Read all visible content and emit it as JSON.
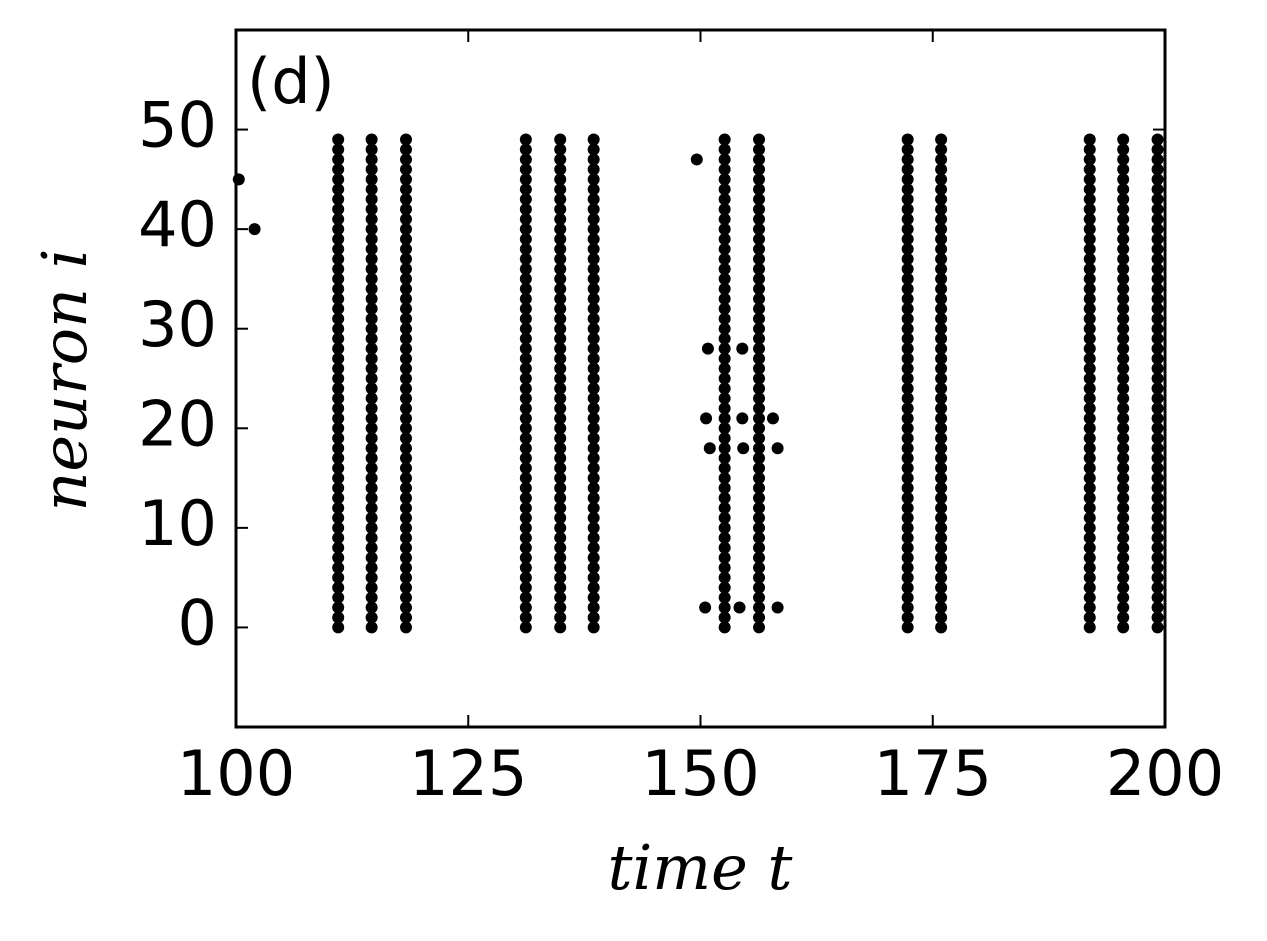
{
  "chart_data": {
    "type": "scatter",
    "annotation": "(d)",
    "xlabel": "time t",
    "ylabel": "neuron i",
    "color": "#000000",
    "xlim": [
      100,
      200
    ],
    "ylim": [
      -10,
      60
    ],
    "xticks": [
      100,
      125,
      150,
      175,
      200
    ],
    "yticks": [
      0,
      10,
      20,
      30,
      40,
      50
    ],
    "x": [
      111.0,
      111.0,
      111.0,
      111.0,
      111.0,
      111.0,
      111.0,
      111.0,
      111.0,
      111.0,
      111.0,
      111.0,
      111.0,
      111.0,
      111.0,
      111.0,
      111.0,
      111.0,
      111.0,
      111.0,
      111.0,
      111.0,
      111.0,
      111.0,
      111.0,
      111.0,
      111.0,
      111.0,
      111.0,
      111.0,
      111.0,
      111.0,
      111.0,
      111.0,
      111.0,
      111.0,
      111.0,
      111.0,
      111.0,
      111.0,
      111.0,
      111.0,
      111.0,
      111.0,
      111.0,
      111.0,
      111.0,
      111.0,
      111.0,
      111.0,
      114.6,
      114.6,
      114.6,
      114.6,
      114.6,
      114.6,
      114.6,
      114.6,
      114.6,
      114.6,
      114.6,
      114.6,
      114.6,
      114.6,
      114.6,
      114.6,
      114.6,
      114.6,
      114.6,
      114.6,
      114.6,
      114.6,
      114.6,
      114.6,
      114.6,
      114.6,
      114.6,
      114.6,
      114.6,
      114.6,
      114.6,
      114.6,
      114.6,
      114.6,
      114.6,
      114.6,
      114.6,
      114.6,
      114.6,
      114.6,
      114.6,
      114.6,
      114.6,
      114.6,
      114.6,
      114.6,
      114.6,
      114.6,
      114.6,
      114.6,
      118.3,
      118.3,
      118.3,
      118.3,
      118.3,
      118.3,
      118.3,
      118.3,
      118.3,
      118.3,
      118.3,
      118.3,
      118.3,
      118.3,
      118.3,
      118.3,
      118.3,
      118.3,
      118.3,
      118.3,
      118.3,
      118.3,
      118.3,
      118.3,
      118.3,
      118.3,
      118.3,
      118.3,
      118.3,
      118.3,
      118.3,
      118.3,
      118.3,
      118.3,
      118.3,
      118.3,
      118.3,
      118.3,
      118.3,
      118.3,
      118.3,
      118.3,
      118.3,
      118.3,
      118.3,
      118.3,
      118.3,
      118.3,
      118.3,
      118.3,
      131.2,
      131.2,
      131.2,
      131.2,
      131.2,
      131.2,
      131.2,
      131.2,
      131.2,
      131.2,
      131.2,
      131.2,
      131.2,
      131.2,
      131.2,
      131.2,
      131.2,
      131.2,
      131.2,
      131.2,
      131.2,
      131.2,
      131.2,
      131.2,
      131.2,
      131.2,
      131.2,
      131.2,
      131.2,
      131.2,
      131.2,
      131.2,
      131.2,
      131.2,
      131.2,
      131.2,
      131.2,
      131.2,
      131.2,
      131.2,
      131.2,
      131.2,
      131.2,
      131.2,
      131.2,
      131.2,
      131.2,
      131.2,
      131.2,
      131.2,
      134.9,
      134.9,
      134.9,
      134.9,
      134.9,
      134.9,
      134.9,
      134.9,
      134.9,
      134.9,
      134.9,
      134.9,
      134.9,
      134.9,
      134.9,
      134.9,
      134.9,
      134.9,
      134.9,
      134.9,
      134.9,
      134.9,
      134.9,
      134.9,
      134.9,
      134.9,
      134.9,
      134.9,
      134.9,
      134.9,
      134.9,
      134.9,
      134.9,
      134.9,
      134.9,
      134.9,
      134.9,
      134.9,
      134.9,
      134.9,
      134.9,
      134.9,
      134.9,
      134.9,
      134.9,
      134.9,
      134.9,
      134.9,
      134.9,
      134.9,
      138.5,
      138.5,
      138.5,
      138.5,
      138.5,
      138.5,
      138.5,
      138.5,
      138.5,
      138.5,
      138.5,
      138.5,
      138.5,
      138.5,
      138.5,
      138.5,
      138.5,
      138.5,
      138.5,
      138.5,
      138.5,
      138.5,
      138.5,
      138.5,
      138.5,
      138.5,
      138.5,
      138.5,
      138.5,
      138.5,
      138.5,
      138.5,
      138.5,
      138.5,
      138.5,
      138.5,
      138.5,
      138.5,
      138.5,
      138.5,
      138.5,
      138.5,
      138.5,
      138.5,
      138.5,
      138.5,
      138.5,
      138.5,
      138.5,
      138.5,
      152.6,
      152.6,
      152.6,
      152.6,
      152.6,
      152.6,
      152.6,
      152.6,
      152.6,
      152.6,
      152.6,
      152.6,
      152.6,
      152.6,
      152.6,
      152.6,
      152.6,
      152.6,
      152.6,
      152.6,
      152.6,
      152.6,
      152.6,
      152.6,
      152.6,
      152.6,
      152.6,
      152.6,
      152.6,
      152.6,
      152.6,
      152.6,
      152.6,
      152.6,
      152.6,
      152.6,
      152.6,
      152.6,
      152.6,
      152.6,
      152.6,
      152.6,
      152.6,
      152.6,
      152.6,
      152.6,
      152.6,
      152.6,
      152.6,
      152.6,
      156.3,
      156.3,
      156.3,
      156.3,
      156.3,
      156.3,
      156.3,
      156.3,
      156.3,
      156.3,
      156.3,
      156.3,
      156.3,
      156.3,
      156.3,
      156.3,
      156.3,
      156.3,
      156.3,
      156.3,
      156.3,
      156.3,
      156.3,
      156.3,
      156.3,
      156.3,
      156.3,
      156.3,
      156.3,
      156.3,
      156.3,
      156.3,
      156.3,
      156.3,
      156.3,
      156.3,
      156.3,
      156.3,
      156.3,
      156.3,
      156.3,
      156.3,
      156.3,
      156.3,
      156.3,
      156.3,
      156.3,
      156.3,
      156.3,
      156.3,
      172.3,
      172.3,
      172.3,
      172.3,
      172.3,
      172.3,
      172.3,
      172.3,
      172.3,
      172.3,
      172.3,
      172.3,
      172.3,
      172.3,
      172.3,
      172.3,
      172.3,
      172.3,
      172.3,
      172.3,
      172.3,
      172.3,
      172.3,
      172.3,
      172.3,
      172.3,
      172.3,
      172.3,
      172.3,
      172.3,
      172.3,
      172.3,
      172.3,
      172.3,
      172.3,
      172.3,
      172.3,
      172.3,
      172.3,
      172.3,
      172.3,
      172.3,
      172.3,
      172.3,
      172.3,
      172.3,
      172.3,
      172.3,
      172.3,
      172.3,
      175.9,
      175.9,
      175.9,
      175.9,
      175.9,
      175.9,
      175.9,
      175.9,
      175.9,
      175.9,
      175.9,
      175.9,
      175.9,
      175.9,
      175.9,
      175.9,
      175.9,
      175.9,
      175.9,
      175.9,
      175.9,
      175.9,
      175.9,
      175.9,
      175.9,
      175.9,
      175.9,
      175.9,
      175.9,
      175.9,
      175.9,
      175.9,
      175.9,
      175.9,
      175.9,
      175.9,
      175.9,
      175.9,
      175.9,
      175.9,
      175.9,
      175.9,
      175.9,
      175.9,
      175.9,
      175.9,
      175.9,
      175.9,
      175.9,
      175.9,
      191.9,
      191.9,
      191.9,
      191.9,
      191.9,
      191.9,
      191.9,
      191.9,
      191.9,
      191.9,
      191.9,
      191.9,
      191.9,
      191.9,
      191.9,
      191.9,
      191.9,
      191.9,
      191.9,
      191.9,
      191.9,
      191.9,
      191.9,
      191.9,
      191.9,
      191.9,
      191.9,
      191.9,
      191.9,
      191.9,
      191.9,
      191.9,
      191.9,
      191.9,
      191.9,
      191.9,
      191.9,
      191.9,
      191.9,
      191.9,
      191.9,
      191.9,
      191.9,
      191.9,
      191.9,
      191.9,
      191.9,
      191.9,
      191.9,
      191.9,
      195.5,
      195.5,
      195.5,
      195.5,
      195.5,
      195.5,
      195.5,
      195.5,
      195.5,
      195.5,
      195.5,
      195.5,
      195.5,
      195.5,
      195.5,
      195.5,
      195.5,
      195.5,
      195.5,
      195.5,
      195.5,
      195.5,
      195.5,
      195.5,
      195.5,
      195.5,
      195.5,
      195.5,
      195.5,
      195.5,
      195.5,
      195.5,
      195.5,
      195.5,
      195.5,
      195.5,
      195.5,
      195.5,
      195.5,
      195.5,
      195.5,
      195.5,
      195.5,
      195.5,
      195.5,
      195.5,
      195.5,
      195.5,
      195.5,
      195.5,
      199.2,
      199.2,
      199.2,
      199.2,
      199.2,
      199.2,
      199.2,
      199.2,
      199.2,
      199.2,
      199.2,
      199.2,
      199.2,
      199.2,
      199.2,
      199.2,
      199.2,
      199.2,
      199.2,
      199.2,
      199.2,
      199.2,
      199.2,
      199.2,
      199.2,
      199.2,
      199.2,
      199.2,
      199.2,
      199.2,
      199.2,
      199.2,
      199.2,
      199.2,
      199.2,
      199.2,
      199.2,
      199.2,
      199.2,
      199.2,
      199.2,
      199.2,
      199.2,
      199.2,
      199.2,
      199.2,
      199.2,
      199.2,
      199.2,
      199.2,
      100.3,
      102.0,
      149.6,
      150.5,
      150.6,
      151.0,
      150.8,
      154.5,
      154.5,
      154.6,
      154.2,
      157.8,
      158.3,
      158.3
    ],
    "y": [
      0,
      1,
      2,
      3,
      4,
      5,
      6,
      7,
      8,
      9,
      10,
      11,
      12,
      13,
      14,
      15,
      16,
      17,
      18,
      19,
      20,
      21,
      22,
      23,
      24,
      25,
      26,
      27,
      28,
      29,
      30,
      31,
      32,
      33,
      34,
      35,
      36,
      37,
      38,
      39,
      40,
      41,
      42,
      43,
      44,
      45,
      46,
      47,
      48,
      49,
      0,
      1,
      2,
      3,
      4,
      5,
      6,
      7,
      8,
      9,
      10,
      11,
      12,
      13,
      14,
      15,
      16,
      17,
      18,
      19,
      20,
      21,
      22,
      23,
      24,
      25,
      26,
      27,
      28,
      29,
      30,
      31,
      32,
      33,
      34,
      35,
      36,
      37,
      38,
      39,
      40,
      41,
      42,
      43,
      44,
      45,
      46,
      47,
      48,
      49,
      0,
      1,
      2,
      3,
      4,
      5,
      6,
      7,
      8,
      9,
      10,
      11,
      12,
      13,
      14,
      15,
      16,
      17,
      18,
      19,
      20,
      21,
      22,
      23,
      24,
      25,
      26,
      27,
      28,
      29,
      30,
      31,
      32,
      33,
      34,
      35,
      36,
      37,
      38,
      39,
      40,
      41,
      42,
      43,
      44,
      45,
      46,
      47,
      48,
      49,
      0,
      1,
      2,
      3,
      4,
      5,
      6,
      7,
      8,
      9,
      10,
      11,
      12,
      13,
      14,
      15,
      16,
      17,
      18,
      19,
      20,
      21,
      22,
      23,
      24,
      25,
      26,
      27,
      28,
      29,
      30,
      31,
      32,
      33,
      34,
      35,
      36,
      37,
      38,
      39,
      40,
      41,
      42,
      43,
      44,
      45,
      46,
      47,
      48,
      49,
      0,
      1,
      2,
      3,
      4,
      5,
      6,
      7,
      8,
      9,
      10,
      11,
      12,
      13,
      14,
      15,
      16,
      17,
      18,
      19,
      20,
      21,
      22,
      23,
      24,
      25,
      26,
      27,
      28,
      29,
      30,
      31,
      32,
      33,
      34,
      35,
      36,
      37,
      38,
      39,
      40,
      41,
      42,
      43,
      44,
      45,
      46,
      47,
      48,
      49,
      0,
      1,
      2,
      3,
      4,
      5,
      6,
      7,
      8,
      9,
      10,
      11,
      12,
      13,
      14,
      15,
      16,
      17,
      18,
      19,
      20,
      21,
      22,
      23,
      24,
      25,
      26,
      27,
      28,
      29,
      30,
      31,
      32,
      33,
      34,
      35,
      36,
      37,
      38,
      39,
      40,
      41,
      42,
      43,
      44,
      45,
      46,
      47,
      48,
      49,
      0,
      1,
      2,
      3,
      4,
      5,
      6,
      7,
      8,
      9,
      10,
      11,
      12,
      13,
      14,
      15,
      16,
      17,
      18,
      19,
      20,
      21,
      22,
      23,
      24,
      25,
      26,
      27,
      28,
      29,
      30,
      31,
      32,
      33,
      34,
      35,
      36,
      37,
      38,
      39,
      40,
      41,
      42,
      43,
      44,
      45,
      46,
      47,
      48,
      49,
      0,
      1,
      2,
      3,
      4,
      5,
      6,
      7,
      8,
      9,
      10,
      11,
      12,
      13,
      14,
      15,
      16,
      17,
      18,
      19,
      20,
      21,
      22,
      23,
      24,
      25,
      26,
      27,
      28,
      29,
      30,
      31,
      32,
      33,
      34,
      35,
      36,
      37,
      38,
      39,
      40,
      41,
      42,
      43,
      44,
      45,
      46,
      47,
      48,
      49,
      0,
      1,
      2,
      3,
      4,
      5,
      6,
      7,
      8,
      9,
      10,
      11,
      12,
      13,
      14,
      15,
      16,
      17,
      18,
      19,
      20,
      21,
      22,
      23,
      24,
      25,
      26,
      27,
      28,
      29,
      30,
      31,
      32,
      33,
      34,
      35,
      36,
      37,
      38,
      39,
      40,
      41,
      42,
      43,
      44,
      45,
      46,
      47,
      48,
      49,
      0,
      1,
      2,
      3,
      4,
      5,
      6,
      7,
      8,
      9,
      10,
      11,
      12,
      13,
      14,
      15,
      16,
      17,
      18,
      19,
      20,
      21,
      22,
      23,
      24,
      25,
      26,
      27,
      28,
      29,
      30,
      31,
      32,
      33,
      34,
      35,
      36,
      37,
      38,
      39,
      40,
      41,
      42,
      43,
      44,
      45,
      46,
      47,
      48,
      49,
      0,
      1,
      2,
      3,
      4,
      5,
      6,
      7,
      8,
      9,
      10,
      11,
      12,
      13,
      14,
      15,
      16,
      17,
      18,
      19,
      20,
      21,
      22,
      23,
      24,
      25,
      26,
      27,
      28,
      29,
      30,
      31,
      32,
      33,
      34,
      35,
      36,
      37,
      38,
      39,
      40,
      41,
      42,
      43,
      44,
      45,
      46,
      47,
      48,
      49,
      0,
      1,
      2,
      3,
      4,
      5,
      6,
      7,
      8,
      9,
      10,
      11,
      12,
      13,
      14,
      15,
      16,
      17,
      18,
      19,
      20,
      21,
      22,
      23,
      24,
      25,
      26,
      27,
      28,
      29,
      30,
      31,
      32,
      33,
      34,
      35,
      36,
      37,
      38,
      39,
      40,
      41,
      42,
      43,
      44,
      45,
      46,
      47,
      48,
      49,
      0,
      1,
      2,
      3,
      4,
      5,
      6,
      7,
      8,
      9,
      10,
      11,
      12,
      13,
      14,
      15,
      16,
      17,
      18,
      19,
      20,
      21,
      22,
      23,
      24,
      25,
      26,
      27,
      28,
      29,
      30,
      31,
      32,
      33,
      34,
      35,
      36,
      37,
      38,
      39,
      40,
      41,
      42,
      43,
      44,
      45,
      46,
      47,
      48,
      49,
      45,
      40,
      47,
      2,
      21,
      18,
      28,
      28,
      21,
      18,
      2,
      21,
      18,
      2
    ]
  }
}
